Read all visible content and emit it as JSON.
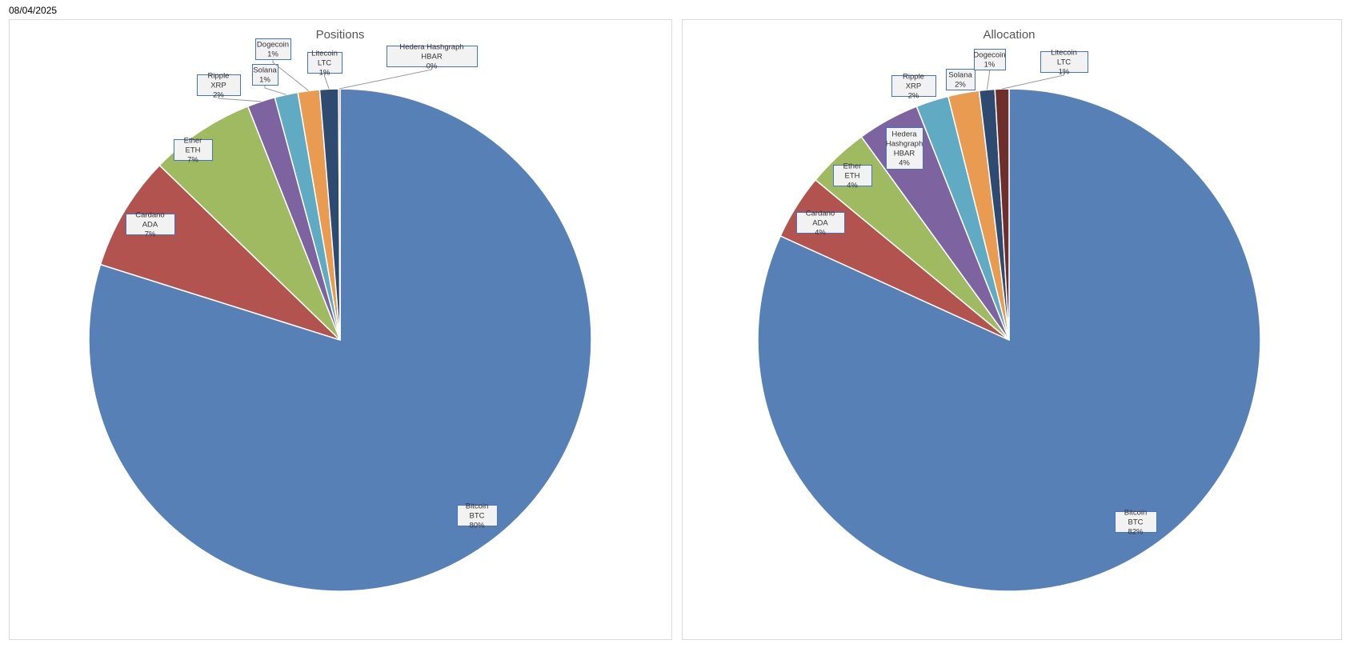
{
  "date": "08/04/2025",
  "palette": [
    "#5780B7",
    "#B3534F",
    "#9FBA61",
    "#7D64A0",
    "#60AAC4",
    "#EA9B52",
    "#2F4A70",
    "#6E2E2C"
  ],
  "chart_data": [
    {
      "type": "pie",
      "title": "Positions",
      "categories": [
        "Bitcoin BTC",
        "Cardano ADA",
        "Ether ETH",
        "Ripple XRP",
        "Solana",
        "Dogecoin",
        "Litecoin LTC",
        "Hedera Hashgraph HBAR"
      ],
      "values": [
        80.1,
        7.4,
        6.8,
        1.8,
        1.5,
        1.4,
        1.2,
        0.1
      ],
      "labels": [
        "80%",
        "7%",
        "7%",
        "2%",
        "1%",
        "1%",
        "1%",
        "0%"
      ]
    },
    {
      "type": "pie",
      "title": "Allocation",
      "categories": [
        "Bitcoin BTC",
        "Cardano ADA",
        "Ether ETH",
        "Hedera Hashgraph HBAR",
        "Ripple XRP",
        "Solana",
        "Dogecoin",
        "Litecoin LTC"
      ],
      "values": [
        81.8,
        4.2,
        4.0,
        4.0,
        2.1,
        2.0,
        1.0,
        0.9
      ],
      "labels": [
        "82%",
        "4%",
        "4%",
        "4%",
        "2%",
        "2%",
        "1%",
        "1%"
      ]
    }
  ]
}
